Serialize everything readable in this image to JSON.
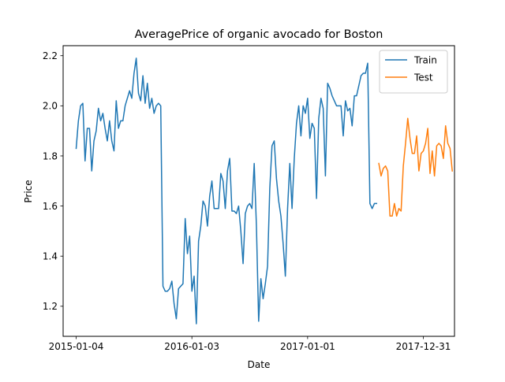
{
  "chart_data": {
    "type": "line",
    "title": "AveragePrice of organic avocado for Boston",
    "xlabel": "Date",
    "ylabel": "Price",
    "x_tick_labels": [
      "2015-01-04",
      "2016-01-03",
      "2017-01-01",
      "2017-12-31"
    ],
    "x_tick_dates": [
      "2015-01-04",
      "2016-01-03",
      "2017-01-01",
      "2017-12-31"
    ],
    "xlim": [
      "2014-11-24",
      "2018-04-08"
    ],
    "y_ticks": [
      1.2,
      1.4,
      1.6,
      1.8,
      2.0,
      2.2
    ],
    "y_tick_labels": [
      "1.2",
      "1.4",
      "1.6",
      "1.8",
      "2.0",
      "2.2"
    ],
    "ylim": [
      1.08,
      2.24
    ],
    "grid": false,
    "legend_position": "top-right",
    "series": [
      {
        "name": "Train",
        "color": "#1f77b4",
        "x_start": "2015-01-04",
        "step_days": 7,
        "values": [
          1.83,
          1.94,
          2.0,
          2.01,
          1.78,
          1.91,
          1.91,
          1.74,
          1.86,
          1.9,
          1.99,
          1.94,
          1.97,
          1.91,
          1.86,
          1.94,
          1.86,
          1.82,
          2.02,
          1.91,
          1.94,
          1.94,
          2.0,
          2.03,
          2.06,
          2.03,
          2.13,
          2.19,
          2.05,
          2.02,
          2.12,
          2.01,
          2.09,
          1.99,
          2.03,
          1.97,
          2.0,
          2.01,
          2.0,
          1.28,
          1.26,
          1.26,
          1.27,
          1.3,
          1.21,
          1.15,
          1.27,
          1.28,
          1.29,
          1.55,
          1.41,
          1.48,
          1.26,
          1.32,
          1.13,
          1.46,
          1.52,
          1.62,
          1.6,
          1.52,
          1.64,
          1.7,
          1.59,
          1.59,
          1.59,
          1.73,
          1.7,
          1.59,
          1.74,
          1.79,
          1.58,
          1.58,
          1.57,
          1.6,
          1.5,
          1.37,
          1.57,
          1.6,
          1.61,
          1.59,
          1.77,
          1.52,
          1.14,
          1.31,
          1.23,
          1.29,
          1.36,
          1.67,
          1.84,
          1.86,
          1.71,
          1.62,
          1.56,
          1.45,
          1.32,
          1.59,
          1.77,
          1.59,
          1.79,
          1.93,
          2.0,
          1.88,
          2.0,
          1.97,
          2.03,
          1.87,
          1.93,
          1.91,
          1.63,
          1.95,
          2.03,
          1.99,
          1.72,
          2.09,
          2.07,
          2.04,
          2.02,
          2.0,
          2.0,
          2.0,
          1.88,
          2.02,
          1.98,
          1.99,
          1.92,
          2.04,
          2.04,
          2.08,
          2.12,
          2.13,
          2.13,
          2.17,
          1.61,
          1.59,
          1.61,
          1.61
        ]
      },
      {
        "name": "Test",
        "color": "#ff7f0e",
        "x_start": "2017-08-13",
        "step_days": 7,
        "values": [
          1.77,
          1.72,
          1.75,
          1.76,
          1.74,
          1.56,
          1.56,
          1.61,
          1.56,
          1.59,
          1.58,
          1.76,
          1.85,
          1.95,
          1.87,
          1.81,
          1.81,
          1.88,
          1.74,
          1.81,
          1.82,
          1.85,
          1.91,
          1.73,
          1.82,
          1.72,
          1.84,
          1.85,
          1.84,
          1.79,
          1.92,
          1.85,
          1.83,
          1.74
        ]
      }
    ]
  }
}
